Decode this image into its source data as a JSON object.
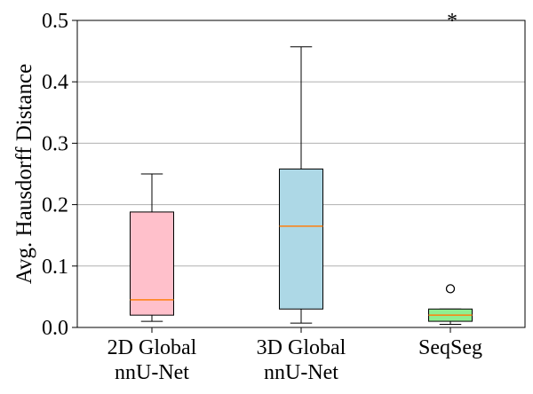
{
  "chart_data": {
    "type": "box",
    "ylabel": "Avg. Hausdorff Distance",
    "ylim": [
      0,
      0.5
    ],
    "yticks": [
      "0.0",
      "0.1",
      "0.2",
      "0.3",
      "0.4",
      "0.5"
    ],
    "ytick_values": [
      0,
      0.1,
      0.2,
      0.3,
      0.4,
      0.5
    ],
    "grid": "horizontal",
    "categories": [
      [
        "2D Global",
        "nnU-Net"
      ],
      [
        "3D Global",
        "nnU-Net"
      ],
      [
        "SeqSeg"
      ]
    ],
    "boxes": [
      {
        "whisker_low": 0.01,
        "q1": 0.02,
        "median": 0.045,
        "q3": 0.188,
        "whisker_high": 0.25,
        "fill": "#ffc0cb",
        "outliers": []
      },
      {
        "whisker_low": 0.007,
        "q1": 0.03,
        "median": 0.165,
        "q3": 0.258,
        "whisker_high": 0.457,
        "fill": "#add8e6",
        "outliers": []
      },
      {
        "whisker_low": 0.005,
        "q1": 0.01,
        "median": 0.02,
        "q3": 0.03,
        "whisker_high": 0.03,
        "fill": "#90ee90",
        "outliers": [
          0.063
        ]
      }
    ],
    "annotations": [
      {
        "text": "*",
        "category_index": 2,
        "y": 0.5
      }
    ],
    "colors": {
      "median": "#ff7f0e",
      "grid": "#b0b0b0",
      "axis": "#000000"
    }
  }
}
